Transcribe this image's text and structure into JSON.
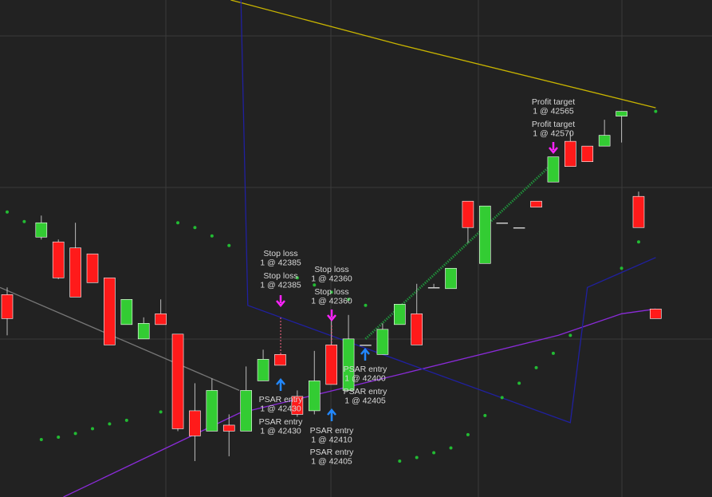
{
  "chart_data": {
    "type": "candlestick",
    "x": [
      0,
      2,
      3,
      4,
      5,
      6,
      7,
      8,
      9,
      10,
      11,
      12,
      13,
      14,
      15,
      16,
      17,
      18,
      19,
      20,
      21,
      22,
      23,
      24,
      25,
      26,
      27,
      28,
      29,
      30,
      31,
      32,
      33,
      34,
      35,
      36,
      37,
      38
    ],
    "open": [
      42449,
      42497,
      42493,
      42488,
      42483,
      42463,
      42424,
      42412,
      42433,
      42416,
      42352,
      42335,
      42340,
      42335,
      42377,
      42399,
      42364,
      42352,
      42407,
      42369,
      42407,
      42399,
      42424,
      42433,
      42455,
      42454,
      42527,
      42475,
      42509,
      42505,
      42527,
      42543,
      42577,
      42573,
      42573,
      42598,
      42531,
      42437
    ],
    "high": [
      42455,
      42515,
      42495,
      42509,
      42483,
      42463,
      42445,
      42430,
      42445,
      42416,
      42375,
      42379,
      42349,
      42389,
      42403,
      42399,
      42369,
      42402,
      42429,
      42432,
      42407,
      42425,
      42441,
      42458,
      42458,
      42471,
      42527,
      42523,
      42509,
      42505,
      42527,
      42564,
      42585,
      42573,
      42595,
      42602,
      42535,
      42437
    ],
    "low": [
      42415,
      42495,
      42462,
      42447,
      42459,
      42407,
      42424,
      42412,
      42424,
      42335,
      42310,
      42335,
      42314,
      42335,
      42377,
      42390,
      42347,
      42349,
      42374,
      42369,
      42407,
      42399,
      42424,
      42407,
      42455,
      42454,
      42492,
      42475,
      42509,
      42505,
      42522,
      42543,
      42556,
      42560,
      42573,
      42576,
      42505,
      42429
    ],
    "close": [
      42429,
      42509,
      42463,
      42447,
      42459,
      42407,
      42445,
      42425,
      42424,
      42337,
      42331,
      42369,
      42335,
      42369,
      42395,
      42390,
      42349,
      42377,
      42374,
      42412,
      42407,
      42420,
      42441,
      42407,
      42455,
      42471,
      42505,
      42523,
      42509,
      42505,
      42522,
      42564,
      42556,
      42560,
      42582,
      42602,
      42505,
      42429
    ],
    "up_color": "#33cc33",
    "down_color": "#ff1a1a",
    "xlim": [
      -0.42,
      41.3
    ],
    "ylim": [
      42280,
      42695
    ],
    "lines": [
      {
        "color": "#c8b400",
        "x": [
          13.1,
          22.9,
          38
        ],
        "values": [
          42695,
          42658,
          42605
        ]
      },
      {
        "color": "#8a2bd8",
        "x": [
          3.3,
          13.6,
          22.9,
          32.3,
          36,
          38
        ],
        "values": [
          42280,
          42350,
          42382,
          42415,
          42433,
          42437
        ]
      },
      {
        "color": "#2020a0",
        "x": [
          13.7,
          14.1,
          33,
          34,
          38
        ],
        "values": [
          42695,
          42440,
          42342,
          42455,
          42480
        ]
      },
      {
        "color": "#777777",
        "x": [
          -0.42,
          13.6
        ],
        "values": [
          42455,
          42369
        ]
      },
      {
        "color": "#1f8f3a",
        "x": [
          21,
          32
        ],
        "values": [
          42412,
          42559
        ]
      }
    ],
    "psar": {
      "color": "#22bb33",
      "x": [
        0,
        1,
        10,
        11,
        12,
        13,
        17,
        2,
        3,
        4,
        5,
        6,
        7,
        9,
        18,
        19,
        20,
        21,
        23,
        24,
        25,
        26,
        27,
        28,
        29,
        30,
        31,
        32,
        33,
        36,
        37,
        38
      ],
      "values": [
        42518,
        42510,
        42509,
        42505,
        42498,
        42490,
        42463,
        42328,
        42330,
        42333,
        42337,
        42341,
        42344,
        42351,
        42457,
        42451,
        42445,
        42440,
        42310,
        42313,
        42317,
        42321,
        42332,
        42348,
        42363,
        42375,
        42388,
        42400,
        42415,
        42471,
        42493,
        42602
      ]
    },
    "annotations": [
      {
        "label": "Stop loss",
        "detail": "1 @ 42385"
      },
      {
        "label": "Stop loss",
        "detail": "1 @ 42385"
      },
      {
        "label": "Stop loss",
        "detail": "1 @ 42360"
      },
      {
        "label": "Stop loss",
        "detail": "1 @ 42360"
      },
      {
        "label": "Profit target",
        "detail": "1 @ 42565"
      },
      {
        "label": "Profit target",
        "detail": "1 @ 42570"
      },
      {
        "label": "PSAR entry",
        "detail": "1 @ 42430"
      },
      {
        "label": "PSAR entry",
        "detail": "1 @ 42430"
      },
      {
        "label": "PSAR entry",
        "detail": "1 @ 42400"
      },
      {
        "label": "PSAR entry",
        "detail": "1 @ 42405"
      },
      {
        "label": "PSAR entry",
        "detail": "1 @ 42410"
      },
      {
        "label": "PSAR entry",
        "detail": "1 @ 42405"
      }
    ]
  }
}
